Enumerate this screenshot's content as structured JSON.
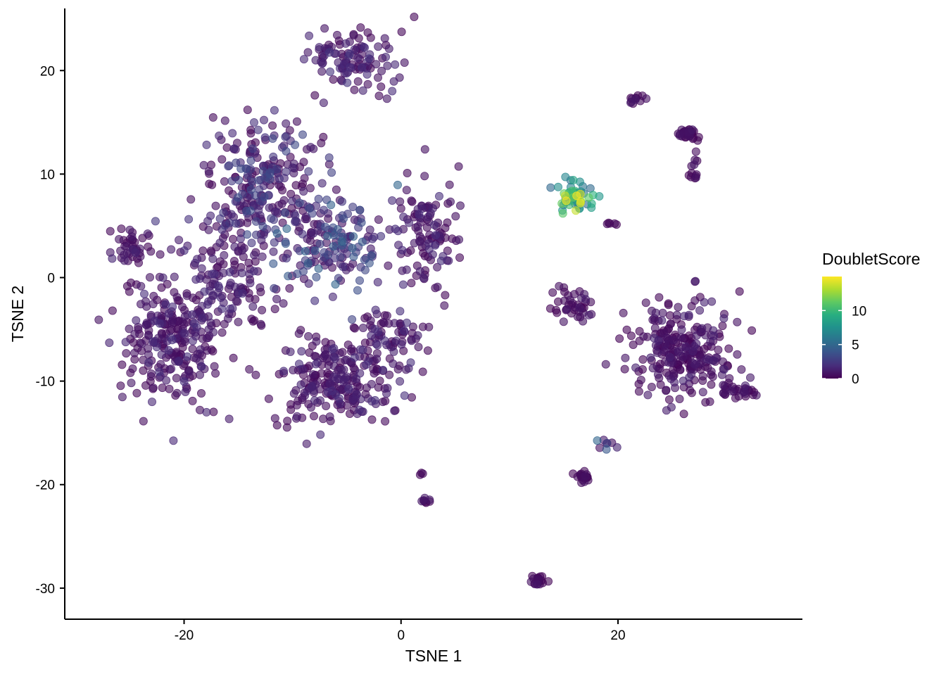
{
  "chart_data": {
    "type": "scatter",
    "title": "",
    "xlabel": "TSNE 1",
    "ylabel": "TSNE 2",
    "xlim": [
      -31,
      37
    ],
    "ylim": [
      -33,
      26
    ],
    "xticks": [
      -20,
      0,
      20
    ],
    "yticks": [
      -30,
      -20,
      -10,
      0,
      10,
      20
    ],
    "xtick_labels": [
      "-20",
      "0",
      "20"
    ],
    "ytick_labels": [
      "-30",
      "-20",
      "-10",
      "0",
      "10",
      "20"
    ],
    "grid": false,
    "legend": {
      "title": "DoubletScore",
      "position": "right",
      "range": [
        0,
        15
      ],
      "ticks": [
        0,
        5,
        10
      ],
      "tick_labels": [
        "0",
        "5",
        "10"
      ],
      "colormap": [
        "#440154",
        "#472d7b",
        "#3b528b",
        "#2c728e",
        "#21918c",
        "#28ae80",
        "#5ec962",
        "#addc30",
        "#fde725"
      ]
    },
    "point_alpha": 0.6,
    "clusters": [
      {
        "center": [
          -13,
          9
        ],
        "spread": [
          4.5,
          5.5
        ],
        "n": 260,
        "score": [
          0.2,
          3.5
        ]
      },
      {
        "center": [
          -4,
          21
        ],
        "spread": [
          3.5,
          2.5
        ],
        "n": 110,
        "score": [
          0.2,
          2.5
        ]
      },
      {
        "center": [
          -6,
          3
        ],
        "spread": [
          4.0,
          3.5
        ],
        "n": 150,
        "score": [
          0.5,
          5
        ]
      },
      {
        "center": [
          2,
          4
        ],
        "spread": [
          2.5,
          4.5
        ],
        "n": 110,
        "score": [
          0.2,
          2
        ]
      },
      {
        "center": [
          -21,
          -6
        ],
        "spread": [
          4.0,
          5.0
        ],
        "n": 260,
        "score": [
          0.2,
          2
        ]
      },
      {
        "center": [
          -16,
          0
        ],
        "spread": [
          3.5,
          4.0
        ],
        "n": 120,
        "score": [
          0.2,
          2
        ]
      },
      {
        "center": [
          -25,
          3
        ],
        "spread": [
          1.6,
          1.6
        ],
        "n": 40,
        "score": [
          0.2,
          1.5
        ]
      },
      {
        "center": [
          -6,
          -10
        ],
        "spread": [
          4.5,
          3.8
        ],
        "n": 230,
        "score": [
          0.2,
          2
        ]
      },
      {
        "center": [
          -1,
          -6
        ],
        "spread": [
          3.0,
          2.5
        ],
        "n": 70,
        "score": [
          0.2,
          2
        ]
      },
      {
        "center": [
          16,
          8
        ],
        "spread": [
          1.3,
          1.4
        ],
        "n": 60,
        "score": [
          5,
          15
        ]
      },
      {
        "center": [
          26,
          -7
        ],
        "spread": [
          4.0,
          3.8
        ],
        "n": 260,
        "score": [
          0.1,
          1.5
        ]
      },
      {
        "center": [
          16,
          -3
        ],
        "spread": [
          1.8,
          1.8
        ],
        "n": 40,
        "score": [
          0.1,
          1.2
        ]
      },
      {
        "center": [
          31,
          -11
        ],
        "spread": [
          1.6,
          0.7
        ],
        "n": 25,
        "score": [
          0.1,
          1
        ]
      },
      {
        "center": [
          26.5,
          14
        ],
        "spread": [
          0.6,
          0.5
        ],
        "n": 35,
        "score": [
          0.1,
          1
        ]
      },
      {
        "center": [
          27,
          10.5
        ],
        "spread": [
          0.4,
          1.2
        ],
        "n": 12,
        "score": [
          0.1,
          1
        ]
      },
      {
        "center": [
          21.5,
          17.3
        ],
        "spread": [
          0.6,
          0.4
        ],
        "n": 12,
        "score": [
          0.1,
          1
        ]
      },
      {
        "center": [
          16.7,
          -19.3
        ],
        "spread": [
          0.6,
          0.5
        ],
        "n": 20,
        "score": [
          0.1,
          1
        ]
      },
      {
        "center": [
          12.7,
          -29.2
        ],
        "spread": [
          0.5,
          0.5
        ],
        "n": 20,
        "score": [
          0.1,
          1
        ]
      },
      {
        "center": [
          2.2,
          -21.6
        ],
        "spread": [
          0.4,
          0.2
        ],
        "n": 8,
        "score": [
          0.1,
          1
        ]
      },
      {
        "center": [
          19,
          -16.2
        ],
        "spread": [
          0.8,
          0.7
        ],
        "n": 8,
        "score": [
          0.5,
          6
        ]
      },
      {
        "center": [
          19.5,
          5.2
        ],
        "spread": [
          0.5,
          0.2
        ],
        "n": 5,
        "score": [
          0.1,
          1
        ]
      },
      {
        "center": [
          1.8,
          -19
        ],
        "spread": [
          0.2,
          0.2
        ],
        "n": 3,
        "score": [
          0.1,
          1
        ]
      }
    ]
  }
}
